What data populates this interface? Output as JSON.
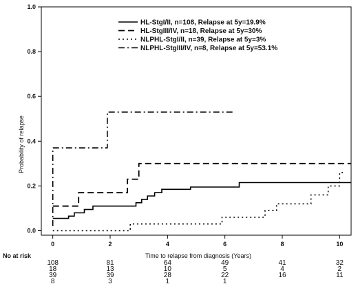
{
  "chart_data": {
    "type": "line",
    "title": "",
    "xlabel": "Time to relapse from diagnosis (Years)",
    "ylabel": "Probability of relapse",
    "xlim": [
      -0.4,
      10.4
    ],
    "ylim": [
      -0.02,
      1.0
    ],
    "xticks": [
      0,
      2,
      4,
      6,
      8,
      10
    ],
    "yticks": [
      0.0,
      0.2,
      0.4,
      0.6,
      0.8,
      1.0
    ],
    "ytick_labels": [
      "0.0",
      "0.2",
      "0.4",
      "0.6",
      "0.8",
      "1.0"
    ],
    "grid": false,
    "legend_position": "top-right",
    "series": [
      {
        "name": "HL-StgI/II, n=108, Relapse at 5y=19.9%",
        "dash": "solid",
        "steps": [
          [
            0,
            0.055
          ],
          [
            0.55,
            0.055
          ],
          [
            0.55,
            0.065
          ],
          [
            0.75,
            0.065
          ],
          [
            0.75,
            0.08
          ],
          [
            1.1,
            0.08
          ],
          [
            1.1,
            0.095
          ],
          [
            1.4,
            0.095
          ],
          [
            1.4,
            0.11
          ],
          [
            2.9,
            0.11
          ],
          [
            2.9,
            0.125
          ],
          [
            3.1,
            0.125
          ],
          [
            3.1,
            0.14
          ],
          [
            3.3,
            0.14
          ],
          [
            3.3,
            0.155
          ],
          [
            3.55,
            0.155
          ],
          [
            3.55,
            0.17
          ],
          [
            3.8,
            0.17
          ],
          [
            3.8,
            0.185
          ],
          [
            4.8,
            0.185
          ],
          [
            4.8,
            0.195
          ],
          [
            6.5,
            0.195
          ],
          [
            6.5,
            0.215
          ],
          [
            10.4,
            0.215
          ]
        ]
      },
      {
        "name": "HL-StgIII/IV, n=18, Relapse at 5y=30%",
        "dash": "dashed",
        "steps": [
          [
            0,
            0.11
          ],
          [
            0.9,
            0.11
          ],
          [
            0.9,
            0.17
          ],
          [
            2.6,
            0.17
          ],
          [
            2.6,
            0.23
          ],
          [
            3.0,
            0.23
          ],
          [
            3.0,
            0.3
          ],
          [
            10.4,
            0.3
          ]
        ]
      },
      {
        "name": "NLPHL-StgI/II, n=39, Relapse at 5y=3%",
        "dash": "dotted",
        "steps": [
          [
            0,
            0.0
          ],
          [
            2.7,
            0.0
          ],
          [
            2.7,
            0.03
          ],
          [
            5.9,
            0.03
          ],
          [
            5.9,
            0.06
          ],
          [
            7.4,
            0.06
          ],
          [
            7.4,
            0.09
          ],
          [
            7.8,
            0.09
          ],
          [
            7.8,
            0.12
          ],
          [
            9.0,
            0.12
          ],
          [
            9.0,
            0.16
          ],
          [
            9.6,
            0.16
          ],
          [
            9.6,
            0.2
          ],
          [
            10.0,
            0.2
          ],
          [
            10.0,
            0.26
          ],
          [
            10.2,
            0.26
          ]
        ]
      },
      {
        "name": "NLPHL-StgIII/IV, n=8, Relapse at 5y=53.1%",
        "dash": "dashdot",
        "steps": [
          [
            0,
            0.02
          ],
          [
            0,
            0.37
          ],
          [
            1.9,
            0.37
          ],
          [
            1.9,
            0.53
          ],
          [
            6.3,
            0.53
          ]
        ]
      }
    ],
    "risk_table": {
      "title": "No at risk",
      "rows": [
        [
          "108",
          "81",
          "64",
          "49",
          "41",
          "32"
        ],
        [
          "18",
          "13",
          "10",
          "5",
          "4",
          "2"
        ],
        [
          "39",
          "39",
          "28",
          "22",
          "16",
          "11"
        ],
        [
          "8",
          "3",
          "1",
          "1",
          "",
          ""
        ]
      ]
    }
  }
}
